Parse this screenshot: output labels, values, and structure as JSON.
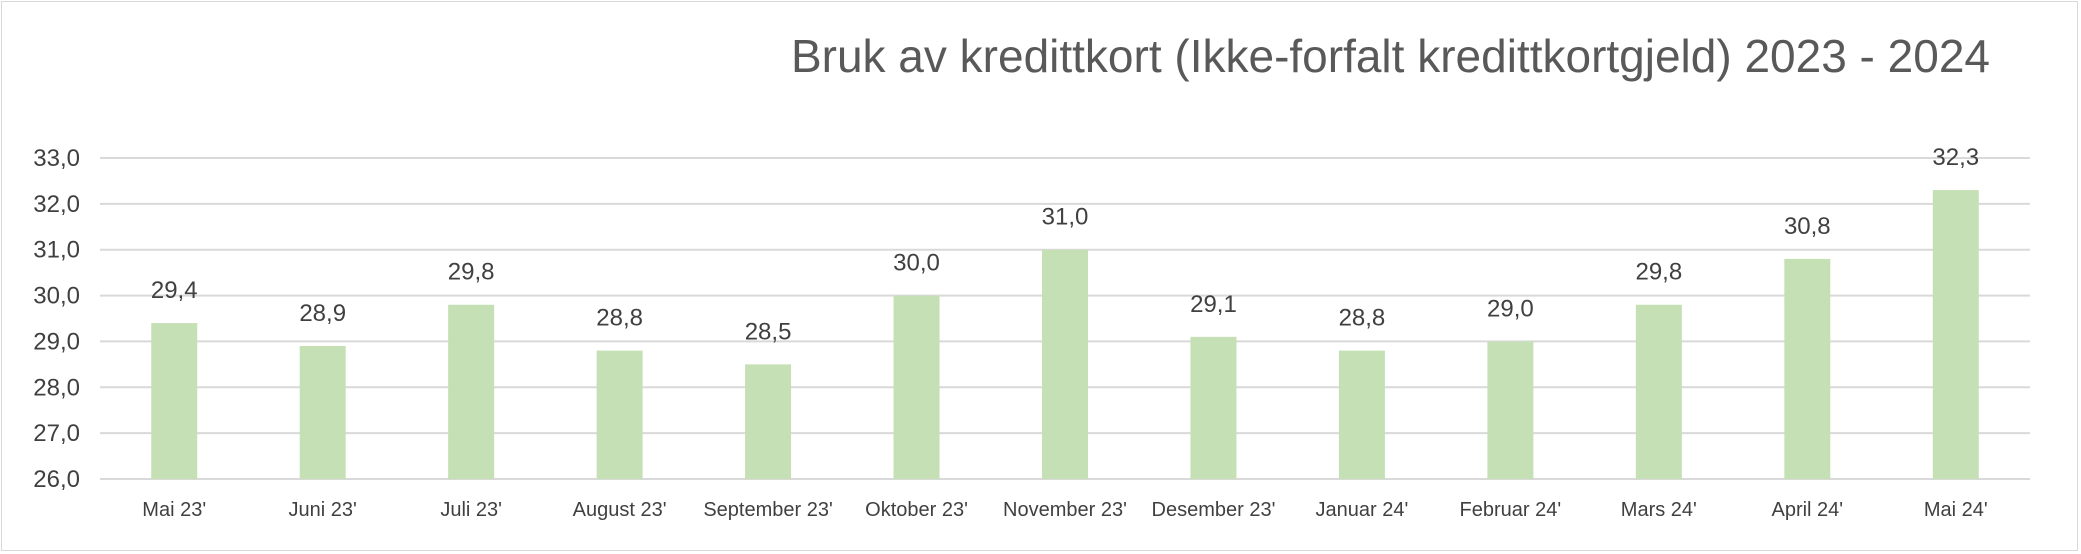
{
  "chart_data": {
    "type": "bar",
    "title": "Bruk av kredittkort (Ikke-forfalt kredittkortgjeld) 2023 - 2024",
    "xlabel": "",
    "ylabel": "",
    "ylim": [
      26,
      33
    ],
    "ytick_step": 1,
    "ytick_labels": [
      "26,0",
      "27,0",
      "28,0",
      "29,0",
      "30,0",
      "31,0",
      "32,0",
      "33,0"
    ],
    "grid": true,
    "legend": "none",
    "bar_color": "#c5e0b4",
    "categories": [
      "Mai 23'",
      "Juni 23'",
      "Juli 23'",
      "August 23'",
      "September 23'",
      "Oktober 23'",
      "November 23'",
      "Desember 23'",
      "Januar 24'",
      "Februar 24'",
      "Mars 24'",
      "April 24'",
      "Mai 24'"
    ],
    "values": [
      29.4,
      28.9,
      29.8,
      28.8,
      28.5,
      30.0,
      31.0,
      29.1,
      28.8,
      29.0,
      29.8,
      30.8,
      32.3
    ],
    "data_labels": [
      "29,4",
      "28,9",
      "29,8",
      "28,8",
      "28,5",
      "30,0",
      "31,0",
      "29,1",
      "28,8",
      "29,0",
      "29,8",
      "30,8",
      "32,3"
    ]
  }
}
